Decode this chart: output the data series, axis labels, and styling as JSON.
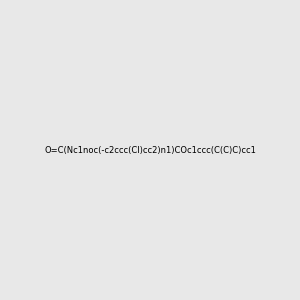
{
  "smiles": "O=C(Nc1noc(-c2ccc(Cl)cc2)n1)COc1ccc(C(C)C)cc1",
  "title": "",
  "bg_color": "#e8e8e8",
  "fig_size": [
    3.0,
    3.0
  ],
  "dpi": 100
}
